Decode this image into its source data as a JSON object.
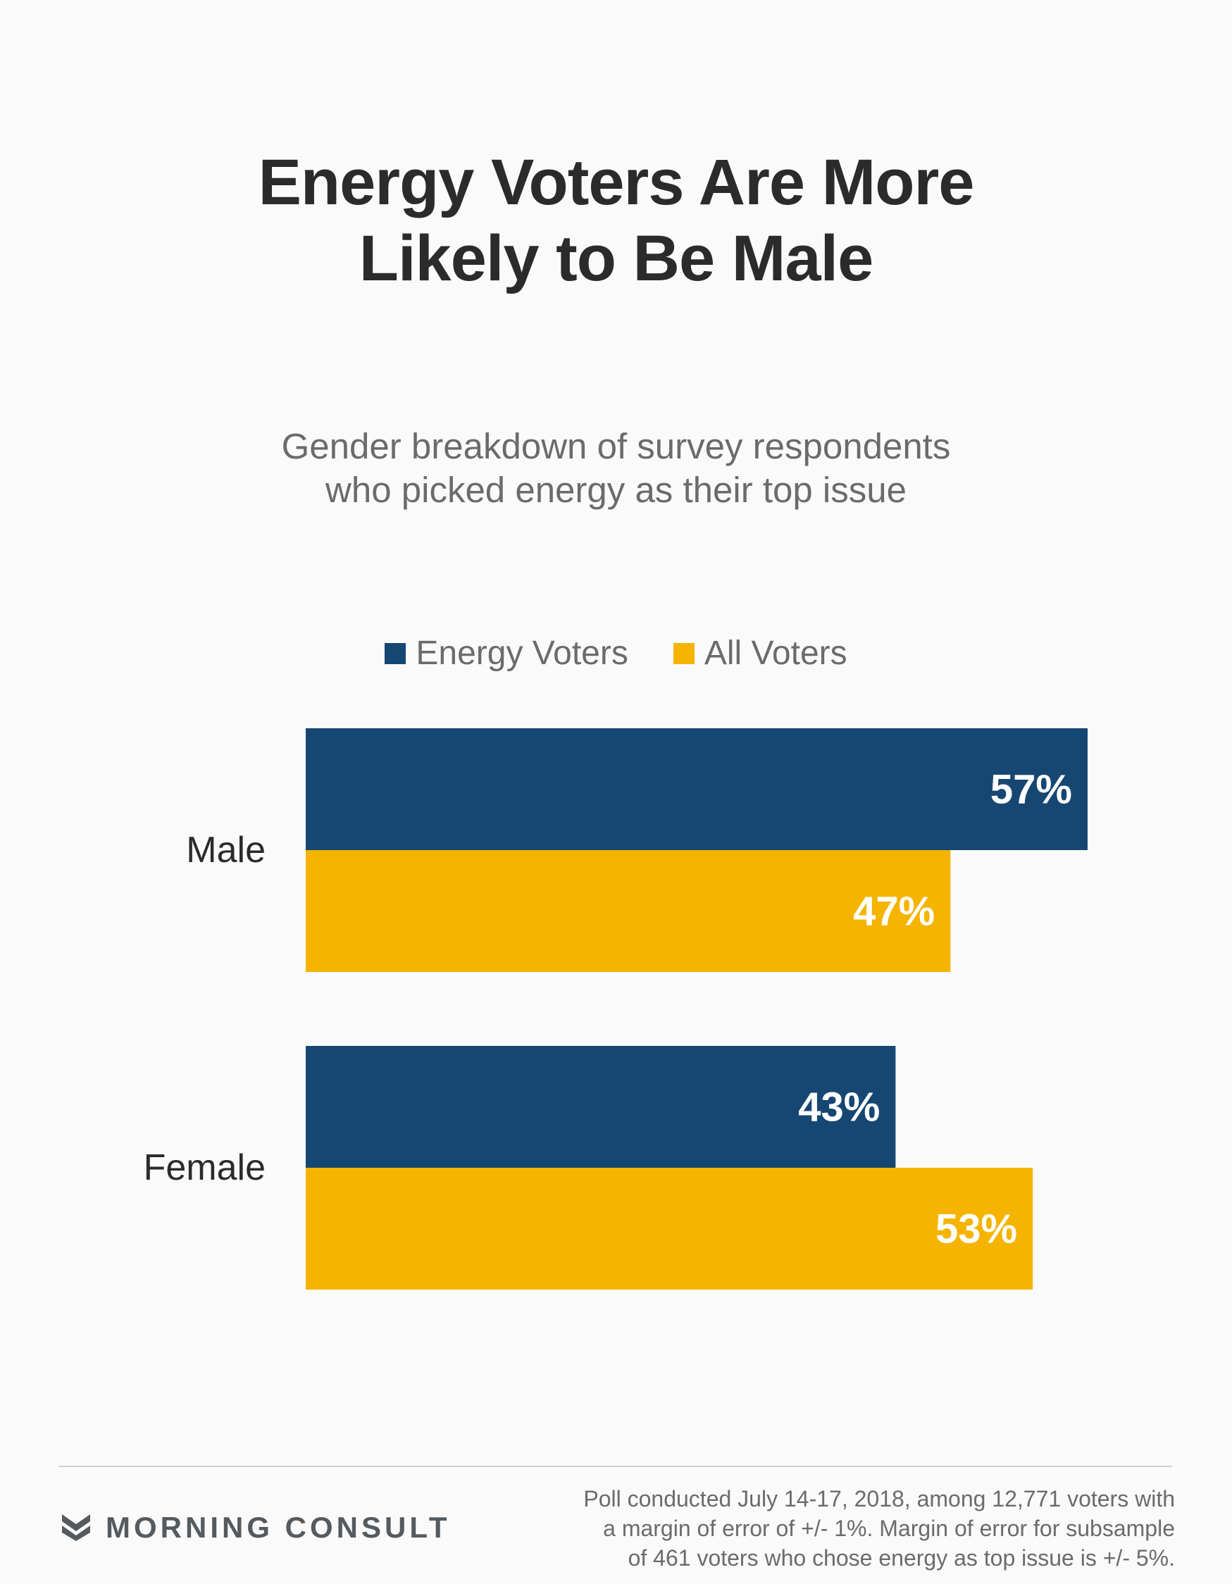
{
  "title": {
    "line1": "Energy Voters Are More",
    "line2": "Likely to Be Male"
  },
  "subtitle": {
    "line1": "Gender breakdown of survey respondents",
    "line2": "who picked energy as their top issue"
  },
  "legend": [
    {
      "label": "Energy Voters",
      "color": "#164773"
    },
    {
      "label": "All Voters",
      "color": "#f4b400"
    }
  ],
  "chart_data": {
    "type": "bar",
    "orientation": "horizontal",
    "categories": [
      "Male",
      "Female"
    ],
    "series": [
      {
        "name": "Energy Voters",
        "values": [
          57,
          43
        ],
        "labels": [
          "57%",
          "43%"
        ],
        "color": "#164773"
      },
      {
        "name": "All Voters",
        "values": [
          47,
          53
        ],
        "labels": [
          "47%",
          "53%"
        ],
        "color": "#f4b400"
      }
    ],
    "unit": "%",
    "xlim": [
      0,
      57
    ],
    "grid": false,
    "legend_position": "top"
  },
  "footer": {
    "brand": "MORNING CONSULT",
    "brand_icon": "morning-consult-chevron-icon",
    "note": [
      "Poll conducted July 14-17, 2018, among 12,771 voters with",
      "a margin of error of +/- 1%. Margin of error for subsample",
      "of 461 voters who chose energy as top issue is +/- 5%."
    ]
  }
}
